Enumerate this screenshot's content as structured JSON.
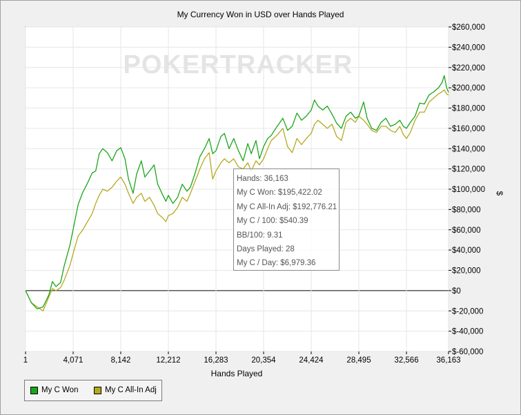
{
  "chart_data": {
    "type": "line",
    "title": "My Currency Won in USD over Hands Played",
    "xlabel": "Hands Played",
    "ylabel": "$",
    "watermark": "POKERTRACKER",
    "xlim": [
      1,
      36163
    ],
    "ylim": [
      -60000,
      260000
    ],
    "x_ticks": [
      1,
      4071,
      8142,
      12212,
      16283,
      20354,
      24424,
      28495,
      32566,
      36163
    ],
    "y_ticks": [
      -60000,
      -40000,
      -20000,
      0,
      20000,
      40000,
      60000,
      80000,
      100000,
      120000,
      140000,
      160000,
      180000,
      200000,
      220000,
      240000,
      260000
    ],
    "y_tick_labels": [
      "$-60,000",
      "$-40,000",
      "$-20,000",
      "$0",
      "$20,000",
      "$40,000",
      "$60,000",
      "$80,000",
      "$100,000",
      "$120,000",
      "$140,000",
      "$160,000",
      "$180,000",
      "$200,000",
      "$220,000",
      "$240,000",
      "$260,000"
    ],
    "x_tick_labels": [
      "1",
      "4,071",
      "8,142",
      "12,212",
      "16,283",
      "20,354",
      "24,424",
      "28,495",
      "32,566",
      "36,163"
    ],
    "grid": true,
    "legend_position": "bottom-left",
    "series": [
      {
        "name": "My C Won",
        "color": "#1aa51a",
        "points": [
          [
            1,
            0
          ],
          [
            500,
            -12000
          ],
          [
            1000,
            -18000
          ],
          [
            1500,
            -16000
          ],
          [
            2000,
            -4000
          ],
          [
            2300,
            9000
          ],
          [
            2600,
            4000
          ],
          [
            3000,
            8000
          ],
          [
            3300,
            24000
          ],
          [
            3800,
            45000
          ],
          [
            4100,
            62000
          ],
          [
            4500,
            85000
          ],
          [
            4900,
            97000
          ],
          [
            5300,
            106000
          ],
          [
            5700,
            116000
          ],
          [
            6000,
            118000
          ],
          [
            6300,
            135000
          ],
          [
            6600,
            140000
          ],
          [
            7000,
            136000
          ],
          [
            7400,
            128000
          ],
          [
            7800,
            138000
          ],
          [
            8142,
            141000
          ],
          [
            8500,
            130000
          ],
          [
            8800,
            110000
          ],
          [
            9200,
            96000
          ],
          [
            9500,
            115000
          ],
          [
            9900,
            128000
          ],
          [
            10200,
            112000
          ],
          [
            10600,
            118000
          ],
          [
            11000,
            124000
          ],
          [
            11300,
            105000
          ],
          [
            11700,
            95000
          ],
          [
            12000,
            88000
          ],
          [
            12212,
            94000
          ],
          [
            12600,
            86000
          ],
          [
            13000,
            92000
          ],
          [
            13400,
            105000
          ],
          [
            13800,
            98000
          ],
          [
            14100,
            102000
          ],
          [
            14500,
            116000
          ],
          [
            14900,
            132000
          ],
          [
            15300,
            140000
          ],
          [
            15700,
            150000
          ],
          [
            16000,
            135000
          ],
          [
            16283,
            138000
          ],
          [
            16700,
            152000
          ],
          [
            17000,
            155000
          ],
          [
            17400,
            140000
          ],
          [
            17800,
            150000
          ],
          [
            18200,
            138000
          ],
          [
            18600,
            128000
          ],
          [
            19000,
            145000
          ],
          [
            19300,
            135000
          ],
          [
            19700,
            148000
          ],
          [
            20000,
            130000
          ],
          [
            20354,
            142000
          ],
          [
            20700,
            150000
          ],
          [
            21000,
            153000
          ],
          [
            21400,
            160000
          ],
          [
            21700,
            165000
          ],
          [
            22000,
            170000
          ],
          [
            22400,
            158000
          ],
          [
            22800,
            162000
          ],
          [
            23200,
            175000
          ],
          [
            23600,
            168000
          ],
          [
            24000,
            172000
          ],
          [
            24424,
            178000
          ],
          [
            24700,
            188000
          ],
          [
            25000,
            182000
          ],
          [
            25400,
            178000
          ],
          [
            25800,
            182000
          ],
          [
            26200,
            174000
          ],
          [
            26600,
            165000
          ],
          [
            27000,
            160000
          ],
          [
            27400,
            172000
          ],
          [
            27800,
            176000
          ],
          [
            28200,
            170000
          ],
          [
            28495,
            172000
          ],
          [
            28900,
            186000
          ],
          [
            29200,
            170000
          ],
          [
            29600,
            160000
          ],
          [
            30000,
            158000
          ],
          [
            30400,
            166000
          ],
          [
            30800,
            170000
          ],
          [
            31200,
            162000
          ],
          [
            31600,
            164000
          ],
          [
            32000,
            168000
          ],
          [
            32300,
            162000
          ],
          [
            32566,
            160000
          ],
          [
            32900,
            166000
          ],
          [
            33300,
            172000
          ],
          [
            33700,
            185000
          ],
          [
            34100,
            184000
          ],
          [
            34500,
            193000
          ],
          [
            34900,
            196000
          ],
          [
            35300,
            200000
          ],
          [
            35600,
            205000
          ],
          [
            35800,
            212000
          ],
          [
            36000,
            200000
          ],
          [
            36163,
            195422
          ]
        ]
      },
      {
        "name": "My C All-In Adj",
        "color": "#b4a91e",
        "points": [
          [
            1,
            0
          ],
          [
            500,
            -12000
          ],
          [
            1000,
            -16000
          ],
          [
            1500,
            -20000
          ],
          [
            2000,
            -6000
          ],
          [
            2300,
            2000
          ],
          [
            2600,
            0
          ],
          [
            3000,
            3000
          ],
          [
            3300,
            10000
          ],
          [
            3800,
            25000
          ],
          [
            4100,
            38000
          ],
          [
            4500,
            54000
          ],
          [
            4900,
            60000
          ],
          [
            5300,
            68000
          ],
          [
            5700,
            76000
          ],
          [
            6000,
            86000
          ],
          [
            6300,
            94000
          ],
          [
            6600,
            100000
          ],
          [
            7000,
            98000
          ],
          [
            7400,
            102000
          ],
          [
            7800,
            108000
          ],
          [
            8142,
            112000
          ],
          [
            8500,
            105000
          ],
          [
            8800,
            96000
          ],
          [
            9200,
            86000
          ],
          [
            9500,
            92000
          ],
          [
            9900,
            96000
          ],
          [
            10200,
            88000
          ],
          [
            10600,
            92000
          ],
          [
            11000,
            84000
          ],
          [
            11300,
            76000
          ],
          [
            11700,
            72000
          ],
          [
            12000,
            68000
          ],
          [
            12212,
            74000
          ],
          [
            12600,
            76000
          ],
          [
            13000,
            82000
          ],
          [
            13400,
            92000
          ],
          [
            13800,
            88000
          ],
          [
            14100,
            96000
          ],
          [
            14500,
            108000
          ],
          [
            14900,
            120000
          ],
          [
            15300,
            130000
          ],
          [
            15700,
            136000
          ],
          [
            16000,
            110000
          ],
          [
            16283,
            118000
          ],
          [
            16700,
            126000
          ],
          [
            17000,
            130000
          ],
          [
            17400,
            126000
          ],
          [
            17800,
            130000
          ],
          [
            18200,
            122000
          ],
          [
            18600,
            120000
          ],
          [
            19000,
            126000
          ],
          [
            19300,
            118000
          ],
          [
            19700,
            128000
          ],
          [
            20000,
            124000
          ],
          [
            20354,
            130000
          ],
          [
            20700,
            140000
          ],
          [
            21000,
            148000
          ],
          [
            21400,
            152000
          ],
          [
            21700,
            156000
          ],
          [
            22000,
            160000
          ],
          [
            22400,
            142000
          ],
          [
            22800,
            136000
          ],
          [
            23200,
            150000
          ],
          [
            23600,
            144000
          ],
          [
            24000,
            150000
          ],
          [
            24424,
            155000
          ],
          [
            24700,
            164000
          ],
          [
            25000,
            168000
          ],
          [
            25400,
            164000
          ],
          [
            25800,
            160000
          ],
          [
            26200,
            164000
          ],
          [
            26600,
            152000
          ],
          [
            27000,
            148000
          ],
          [
            27400,
            166000
          ],
          [
            27800,
            170000
          ],
          [
            28200,
            166000
          ],
          [
            28495,
            172000
          ],
          [
            28900,
            168000
          ],
          [
            29200,
            164000
          ],
          [
            29600,
            158000
          ],
          [
            30000,
            156000
          ],
          [
            30400,
            162000
          ],
          [
            30800,
            162000
          ],
          [
            31200,
            158000
          ],
          [
            31600,
            156000
          ],
          [
            32000,
            162000
          ],
          [
            32300,
            154000
          ],
          [
            32566,
            150000
          ],
          [
            32900,
            156000
          ],
          [
            33300,
            168000
          ],
          [
            33700,
            176000
          ],
          [
            34100,
            176000
          ],
          [
            34500,
            186000
          ],
          [
            34900,
            190000
          ],
          [
            35300,
            194000
          ],
          [
            35600,
            196000
          ],
          [
            35800,
            198000
          ],
          [
            36000,
            194000
          ],
          [
            36163,
            192776
          ]
        ]
      }
    ]
  },
  "tooltip": {
    "hands": "Hands: 36,163",
    "won": "My C Won: $195,422.02",
    "allin": "My C All-In Adj: $192,776.21",
    "per100": "My C / 100: $540.39",
    "bb100": "BB/100: 9.31",
    "days": "Days Played: 28",
    "perday": "My C / Day: $6,979.36"
  },
  "legend": {
    "won_label": "My C Won",
    "allin_label": "My C All-In Adj"
  }
}
